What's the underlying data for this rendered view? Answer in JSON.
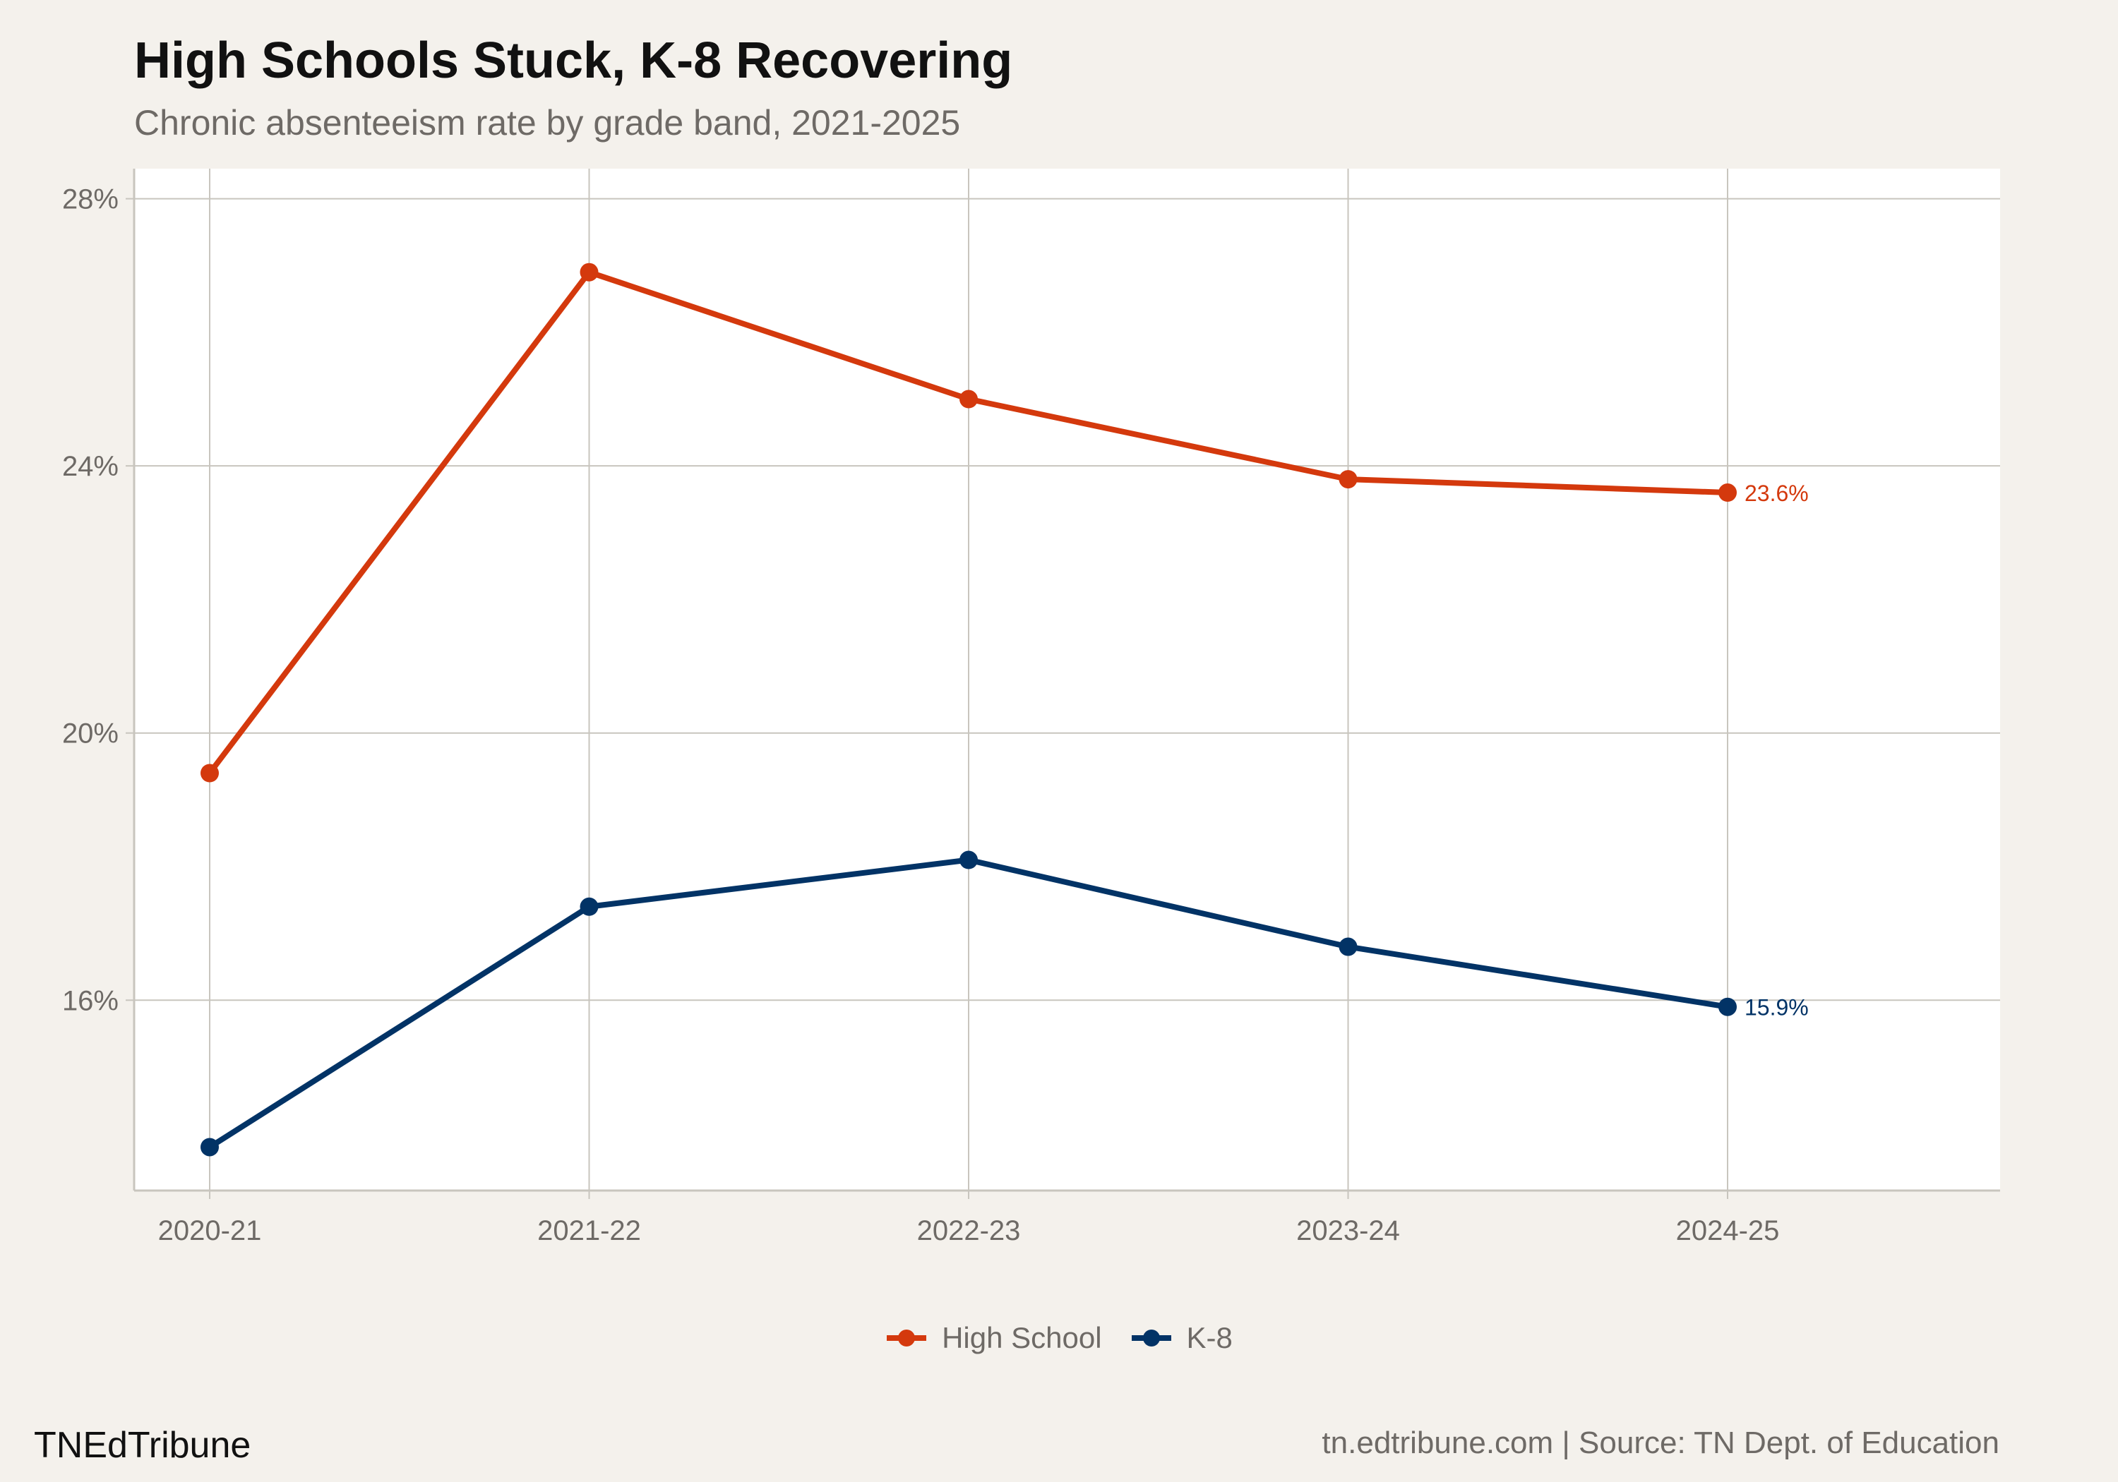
{
  "header": {
    "title": "High Schools Stuck, K-8 Recovering",
    "subtitle": "Chronic absenteeism rate by grade band, 2021-2025"
  },
  "footer": {
    "brand": "TNEdTribune",
    "source": "tn.edtribune.com | Source: TN Dept. of Education"
  },
  "chart_data": {
    "type": "line",
    "title": "High Schools Stuck, K-8 Recovering",
    "subtitle": "Chronic absenteeism rate by grade band, 2021-2025",
    "xlabel": "",
    "ylabel": "",
    "categories": [
      "2020-21",
      "2021-22",
      "2022-23",
      "2023-24",
      "2024-25"
    ],
    "y_ticks": [
      16,
      20,
      24,
      28
    ],
    "y_tick_labels": [
      "16%",
      "20%",
      "24%",
      "28%"
    ],
    "ylim": [
      13.15,
      28.45
    ],
    "grid": true,
    "legend_position": "bottom",
    "series": [
      {
        "name": "High School",
        "color": "#d4390d",
        "values": [
          19.4,
          26.9,
          25.0,
          23.8,
          23.6
        ],
        "end_label": "23.6%"
      },
      {
        "name": "K-8",
        "color": "#023366",
        "values": [
          13.8,
          17.4,
          18.1,
          16.8,
          15.9
        ],
        "end_label": "15.9%"
      }
    ]
  }
}
